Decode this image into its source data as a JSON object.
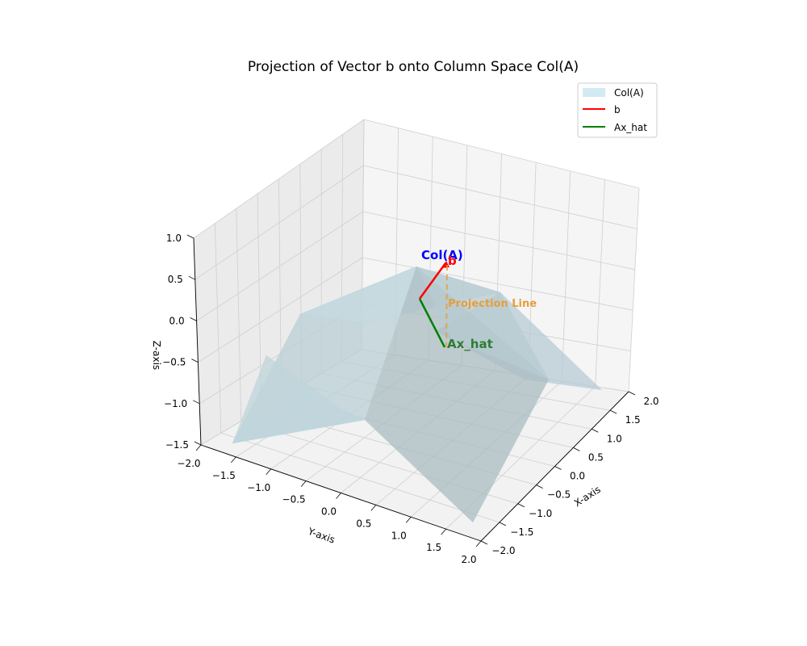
{
  "chart_data": {
    "type": "surface3d",
    "title": "Projection of Vector b onto Column Space Col(A)",
    "xlabel": "X-axis",
    "ylabel": "Y-axis",
    "zlabel": "Z-axis",
    "xlim": [
      -2,
      2
    ],
    "ylim": [
      -2,
      2
    ],
    "zlim": [
      -1.5,
      1
    ],
    "x_ticks": [
      "−2.0",
      "−1.5",
      "−1.0",
      "−0.5",
      "0.0",
      "0.5",
      "1.0",
      "1.5",
      "2.0"
    ],
    "y_ticks": [
      "−2.0",
      "−1.5",
      "−1.0",
      "−0.5",
      "0.0",
      "0.5",
      "1.0",
      "1.5",
      "2.0"
    ],
    "z_ticks": [
      "−1.5",
      "−1.0",
      "−0.5",
      "0.0",
      "0.5",
      "1.0"
    ],
    "grid": true,
    "legend": {
      "placement": "upper right",
      "entries": [
        {
          "label": "Col(A)",
          "color": "#add8e6",
          "kind": "patch"
        },
        {
          "label": "b",
          "color": "#ff0000",
          "kind": "line"
        },
        {
          "label": "Ax_hat",
          "color": "#008000",
          "kind": "line"
        }
      ]
    },
    "surface": {
      "name": "Col(A)",
      "color": "#add8e6",
      "alpha": 0.5
    },
    "vectors": [
      {
        "name": "b",
        "from": [
          0,
          0,
          0
        ],
        "to": [
          0.5,
          0.5,
          1.0
        ],
        "color": "#ff0000"
      },
      {
        "name": "Ax_hat",
        "from": [
          0,
          0,
          0
        ],
        "to": [
          0.5,
          0.5,
          -0.5
        ],
        "color": "#008000"
      }
    ],
    "annotations": [
      {
        "text": "Col(A)",
        "color": "#0000ff"
      },
      {
        "text": "b",
        "color": "#ff0000"
      },
      {
        "text": "Projection Line",
        "color": "#e69e3a"
      },
      {
        "text": "Ax_hat",
        "color": "#2e7d32"
      }
    ]
  }
}
